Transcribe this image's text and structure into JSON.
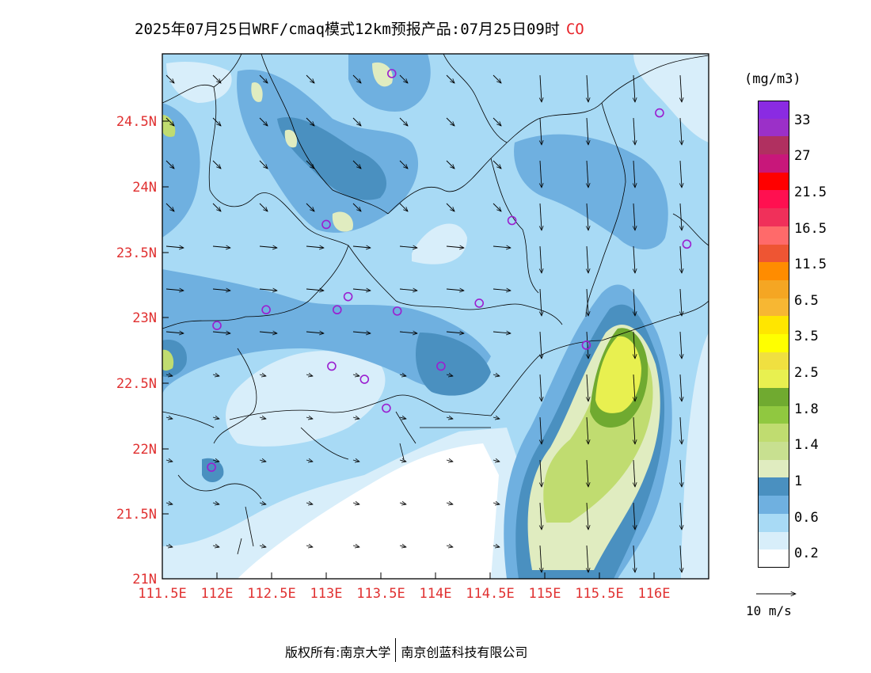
{
  "title": {
    "text": "2025年07月25日WRF/cmaq模式12km预报产品:07月25日09时",
    "species": "CO"
  },
  "axes": {
    "y_ticks": [
      "24.5N",
      "24N",
      "23.5N",
      "23N",
      "22.5N",
      "22N",
      "21.5N",
      "21N"
    ],
    "x_ticks": [
      "111.5E",
      "112E",
      "112.5E",
      "113E",
      "113.5E",
      "114E",
      "114.5E",
      "115E",
      "115.5E",
      "116E"
    ]
  },
  "colorbar": {
    "units": "(mg/m3)",
    "labels": [
      "33",
      "27",
      "21.5",
      "16.5",
      "11.5",
      "6.5",
      "3.5",
      "2.5",
      "1.8",
      "1.4",
      "1",
      "0.6",
      "0.2"
    ],
    "colors_top_to_bottom": [
      "#8a2be2",
      "#9b30c8",
      "#b03060",
      "#c8177a",
      "#ff0000",
      "#ff1050",
      "#f0305a",
      "#ff6a6a",
      "#ee5533",
      "#ff8c00",
      "#f5a623",
      "#f7b733",
      "#ffe600",
      "#ffff00",
      "#f0e040",
      "#e8f050",
      "#70aa30",
      "#90c840",
      "#c0dc70",
      "#c8e090",
      "#e0ecc0",
      "#4a90c0",
      "#6fb0e0",
      "#a8daf5",
      "#d8eefa",
      "#ffffff"
    ]
  },
  "vector_reference": {
    "label": "10 m/s"
  },
  "footer": {
    "left": "版权所有:南京大学",
    "right": "南京创蓝科技有限公司"
  },
  "map": {
    "lon_range": [
      111.5,
      116.5
    ],
    "lat_range": [
      21.0,
      25.0
    ],
    "station_marker_color": "#9b1fd0",
    "stations": [
      {
        "lon": 113.6,
        "lat": 24.85
      },
      {
        "lon": 116.05,
        "lat": 24.55
      },
      {
        "lon": 113.0,
        "lat": 23.7
      },
      {
        "lon": 114.7,
        "lat": 23.73
      },
      {
        "lon": 116.3,
        "lat": 23.55
      },
      {
        "lon": 113.2,
        "lat": 23.15
      },
      {
        "lon": 112.45,
        "lat": 23.05
      },
      {
        "lon": 113.1,
        "lat": 23.05
      },
      {
        "lon": 113.65,
        "lat": 23.04
      },
      {
        "lon": 114.4,
        "lat": 23.1
      },
      {
        "lon": 112.0,
        "lat": 22.93
      },
      {
        "lon": 115.38,
        "lat": 22.78
      },
      {
        "lon": 113.05,
        "lat": 22.62
      },
      {
        "lon": 114.05,
        "lat": 22.62
      },
      {
        "lon": 113.35,
        "lat": 22.52
      },
      {
        "lon": 113.55,
        "lat": 22.3
      },
      {
        "lon": 111.95,
        "lat": 21.85
      }
    ]
  }
}
